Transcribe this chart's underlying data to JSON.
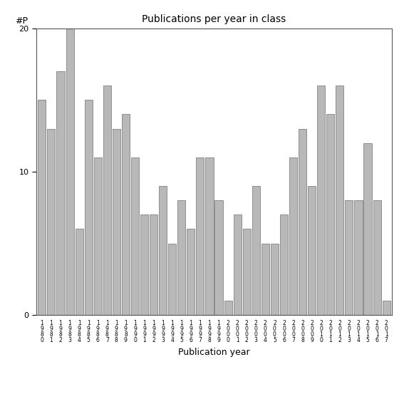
{
  "title": "Publications per year in class",
  "xlabel": "Publication year",
  "ylabel": "#P",
  "bar_color": "#b8b8b8",
  "edge_color": "#555555",
  "background_color": "#ffffff",
  "ylim": [
    0,
    20
  ],
  "yticks": [
    0,
    10,
    20
  ],
  "categories": [
    "1980",
    "1981",
    "1982",
    "1983",
    "1984",
    "1985",
    "1986",
    "1987",
    "1988",
    "1989",
    "1990",
    "1991",
    "1992",
    "1993",
    "1994",
    "1995",
    "1996",
    "1997",
    "1998",
    "1999",
    "2000",
    "2001",
    "2002",
    "2003",
    "2004",
    "2005",
    "2006",
    "2007",
    "2008",
    "2009",
    "2010",
    "2011",
    "2012",
    "2013",
    "2014",
    "2015",
    "2016",
    "2017"
  ],
  "values": [
    15,
    13,
    17,
    20,
    6,
    15,
    11,
    16,
    13,
    14,
    11,
    7,
    7,
    9,
    5,
    8,
    6,
    11,
    11,
    8,
    1,
    7,
    6,
    9,
    5,
    5,
    7,
    11,
    13,
    9,
    16,
    14,
    16,
    8,
    8,
    12,
    8,
    1
  ],
  "figsize": [
    5.67,
    5.67
  ],
  "dpi": 100,
  "title_fontsize": 10,
  "label_fontsize": 9,
  "tick_fontsize": 8,
  "xtick_fontsize": 5.5
}
